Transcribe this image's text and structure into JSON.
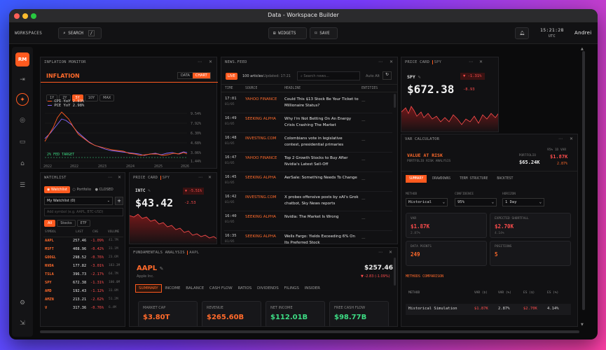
{
  "window": {
    "title": "Data - Workspace Builder"
  },
  "topbar": {
    "workspaces": "WORKSPACES",
    "search": "SEARCH",
    "search_key": "/",
    "widgets": "WIDGETS",
    "save": "SAVE",
    "time": "15:21:28",
    "tz": "UTC",
    "user": "Andrei"
  },
  "sidebar": {
    "logo": "RM"
  },
  "inflation": {
    "header": "INFLATION MONITOR",
    "title": "INFLATION",
    "toggle": [
      "DATA",
      "CHART"
    ],
    "ranges": [
      "1Y",
      "2Y",
      "5Y",
      "10Y",
      "MAX"
    ],
    "active_range": "5Y",
    "legend": [
      {
        "label": "CPI YoY 2.83%",
        "color": "#ff5a1f"
      },
      {
        "label": "PCE YoY 2.98%",
        "color": "#8a6bff"
      }
    ],
    "fed_label": "2% FED TARGET",
    "y_ticks": [
      "9.54%",
      "7.92%",
      "6.30%",
      "4.68%",
      "3.06%",
      "1.44%"
    ],
    "x_ticks": [
      "2022",
      "2022",
      "2023",
      "2024",
      "2025",
      "2026"
    ]
  },
  "news": {
    "header": "NEWS.FEED",
    "live": "LIVE",
    "count": "100 articles",
    "updated": "Updated: 17:21",
    "search_placeholder": "Search news...",
    "auto": "Auto Alt",
    "columns": [
      "TIME",
      "SOURCE",
      "HEADLINE",
      "ENTITIES"
    ],
    "rows": [
      {
        "time": "17:01",
        "date": "01/05",
        "source": "YAHOO FINANCE",
        "headline": "Could This $13 Stock Be Your Ticket to Millionaire Status?",
        "entities": "—"
      },
      {
        "time": "16:49",
        "date": "01/05",
        "source": "SEEKING ALPHA",
        "headline": "Why I'm Not Betting On An Energy Crisis Crashing The Market",
        "entities": "—"
      },
      {
        "time": "16:48",
        "date": "01/05",
        "source": "INVESTING.COM",
        "headline": "Colombians vote in legislative contest, presidential primaries",
        "entities": "—"
      },
      {
        "time": "16:47",
        "date": "01/05",
        "source": "YAHOO FINANCE",
        "headline": "Top 2 Growth Stocks to Buy After Nvidia's Latest Sell-Off",
        "entities": "—"
      },
      {
        "time": "16:45",
        "date": "01/05",
        "source": "SEEKING ALPHA",
        "headline": "AerSale: Something Needs To Change",
        "entities": "—"
      },
      {
        "time": "16:42",
        "date": "01/05",
        "source": "INVESTING.COM",
        "headline": "X probes offensive posts by xAI's Grok chatbot, Sky News reports",
        "entities": "—"
      },
      {
        "time": "16:40",
        "date": "01/05",
        "source": "SEEKING ALPHA",
        "headline": "Nvidia: The Market Is Wrong",
        "entities": "—"
      },
      {
        "time": "16:35",
        "date": "01/05",
        "source": "SEEKING ALPHA",
        "headline": "Wells Fargo: Yields Exceeding 6% On Its Preferred Stock",
        "entities": "—"
      }
    ]
  },
  "spy_card": {
    "header": "PRICE CARD",
    "tag": "SPY",
    "ticker": "SPY",
    "change_pct": "▼ -1.31%",
    "price": "$672.38",
    "change": "-8.93"
  },
  "var": {
    "header": "VAR CALCULATOR",
    "title": "VALUE AT RISK",
    "subtitle": "PORTFOLIO RISK ANALYSIS",
    "portfolio_label": "PORTFOLIO",
    "portfolio_value": "$65.24K",
    "var_label": "95% 1D VAR",
    "var_value": "$1.87K",
    "var_pct": "2.87%",
    "tabs": [
      "SUMMARY",
      "DRAWDOWNS",
      "TERM STRUCTURE",
      "BACKTEST"
    ],
    "method_label": "METHOD",
    "method": "Historical",
    "confidence_label": "CONFIDENCE",
    "confidence": "95%",
    "horizon_label": "HORIZON",
    "horizon": "1 Day",
    "cards": [
      {
        "label": "VAR",
        "value": "$1.87K",
        "sub": "2.87%",
        "color": "#ff4d4d"
      },
      {
        "label": "EXPECTED SHORTFALL",
        "value": "$2.70K",
        "sub": "4.14%",
        "color": "#ff4d4d"
      },
      {
        "label": "DATA POINTS",
        "value": "249",
        "sub": "",
        "color": "#ff6a2b"
      },
      {
        "label": "POSITIONS",
        "value": "5",
        "sub": "",
        "color": "#ff6a2b"
      }
    ],
    "methods_title": "METHODS COMPARISON",
    "table_cols": [
      "METHOD",
      "VAR ($)",
      "VAR (%)",
      "ES ($)",
      "ES (%)"
    ],
    "table_row": [
      "Historical Simulation",
      "$1.87K",
      "2.87%",
      "$2.70K",
      "4.14%"
    ]
  },
  "watchlist": {
    "header": "WATCHLIST",
    "tabs": [
      "Watchlist",
      "Portfolio",
      "CLOSED"
    ],
    "selected": "My Watchlist (0)",
    "add_placeholder": "Add symbol (e.g. AAPL, BTC-USD)",
    "filters": [
      "All",
      "Stocks",
      "ETF"
    ],
    "columns": [
      "SYMBOL",
      "LAST",
      "CHG",
      "VOLUME"
    ],
    "rows": [
      {
        "sym": "AAPL",
        "last": "257.46",
        "chg": "-1.09%",
        "vol": "41.7M",
        "cls": "red"
      },
      {
        "sym": "MSFT",
        "last": "408.96",
        "chg": "-0.42%",
        "vol": "31.1M",
        "cls": "red"
      },
      {
        "sym": "GOOGL",
        "last": "298.52",
        "chg": "-0.76%",
        "vol": "23.6M",
        "cls": "red"
      },
      {
        "sym": "NVDA",
        "last": "177.82",
        "chg": "-3.01%",
        "vol": "183.2M",
        "cls": "red"
      },
      {
        "sym": "TSLA",
        "last": "396.73",
        "chg": "-2.17%",
        "vol": "64.7M",
        "cls": "red"
      },
      {
        "sym": "SPY",
        "last": "672.38",
        "chg": "-1.31%",
        "vol": "100.0M",
        "cls": "red"
      },
      {
        "sym": "AMD",
        "last": "192.43",
        "chg": "-1.12%",
        "vol": "33.8M",
        "cls": "red"
      },
      {
        "sym": "AMZN",
        "last": "213.21",
        "chg": "-2.62%",
        "vol": "51.2M",
        "cls": "red"
      },
      {
        "sym": "V",
        "last": "317.36",
        "chg": "-0.76%",
        "vol": "6.4M",
        "cls": "red"
      }
    ]
  },
  "intc_card": {
    "header": "PRICE CARD",
    "tag": "SPY",
    "ticker": "INTC",
    "change_pct": "▼ -5.51%",
    "price": "$43.42",
    "change": "-2.53"
  },
  "fundamentals": {
    "header": "FUNDAMENTALS ANALYSIS",
    "tag": "AAPL",
    "ticker": "AAPL",
    "name": "Apple Inc.",
    "price": "$257.46",
    "change": "▼ -2.83 (-1.09%)",
    "tabs": [
      "SUMMARY",
      "INCOME",
      "BALANCE",
      "CASH FLOW",
      "RATIOS",
      "DIVIDENDS",
      "FILINGS",
      "INSIDER"
    ],
    "cards": [
      {
        "label": "MARKET CAP",
        "value": "$3.80T",
        "color": "#ff6a2b"
      },
      {
        "label": "REVENUE",
        "value": "$265.60B",
        "color": "#ff6a2b"
      },
      {
        "label": "NET INCOME",
        "value": "$112.01B",
        "color": "#3ddc84"
      },
      {
        "label": "FREE CASH FLOW",
        "value": "$98.77B",
        "color": "#3ddc84"
      }
    ]
  }
}
